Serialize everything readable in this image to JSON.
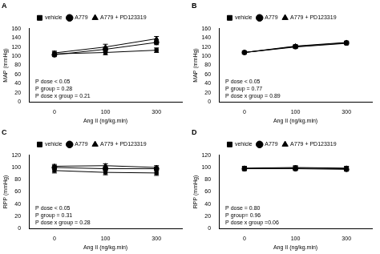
{
  "chart_data": [
    {
      "type": "line",
      "title": "A",
      "categories": [
        "0",
        "100",
        "300"
      ],
      "x_label": "Ang II (ng/kg.min)",
      "y_label": "MAP (mmHg)",
      "ylim": [
        0,
        160
      ],
      "yticks": [
        0,
        20,
        40,
        60,
        80,
        100,
        120,
        140,
        160
      ],
      "grid": false,
      "legend": "top",
      "annotations": [
        "P dose < 0.05",
        "P group = 0.28",
        "P dose x group = 0.21"
      ],
      "series": [
        {
          "name": "vehicle",
          "color": "#000000",
          "marker": "square",
          "values": [
            105,
            108,
            113
          ],
          "errors": [
            4,
            5,
            5
          ]
        },
        {
          "name": "A779",
          "color": "#000000",
          "marker": "circle",
          "values": [
            103,
            115,
            130
          ],
          "errors": [
            4,
            5,
            5
          ]
        },
        {
          "name": "A779 + PD123319",
          "color": "#000000",
          "marker": "triangle",
          "values": [
            107,
            120,
            138
          ],
          "errors": [
            4,
            6,
            5
          ]
        }
      ]
    },
    {
      "type": "line",
      "title": "B",
      "categories": [
        "0",
        "100",
        "300"
      ],
      "x_label": "Ang II (ng/kg.min)",
      "y_label": "MAP (mmHg)",
      "ylim": [
        0,
        160
      ],
      "yticks": [
        0,
        20,
        40,
        60,
        80,
        100,
        120,
        140,
        160
      ],
      "grid": false,
      "legend": "top",
      "annotations": [
        "P dose < 0.05",
        "P group = 0.77",
        "P dose x group = 0.89"
      ],
      "series": [
        {
          "name": "vehicle",
          "color": "#000000",
          "marker": "square",
          "values": [
            108,
            120,
            128
          ],
          "errors": [
            3,
            3,
            3
          ]
        },
        {
          "name": "A779",
          "color": "#000000",
          "marker": "circle",
          "values": [
            108,
            121,
            129
          ],
          "errors": [
            3,
            3,
            3
          ]
        },
        {
          "name": "A779 + PD123319",
          "color": "#000000",
          "marker": "triangle",
          "values": [
            108,
            122,
            130
          ],
          "errors": [
            3,
            3,
            3
          ]
        }
      ]
    },
    {
      "type": "line",
      "title": "C",
      "categories": [
        "0",
        "100",
        "300"
      ],
      "x_label": "Ang II (ng/kg.min)",
      "y_label": "RPP (mmHg)",
      "ylim": [
        0,
        120
      ],
      "yticks": [
        0,
        20,
        40,
        60,
        80,
        100,
        120
      ],
      "grid": false,
      "legend": "top",
      "annotations": [
        "P dose < 0.05",
        "P group = 0.31",
        "P dose x group = 0.28"
      ],
      "series": [
        {
          "name": "vehicle",
          "color": "#000000",
          "marker": "square",
          "values": [
            95,
            92,
            91
          ],
          "errors": [
            4,
            4,
            4
          ]
        },
        {
          "name": "A779",
          "color": "#000000",
          "marker": "circle",
          "values": [
            100,
            98,
            98
          ],
          "errors": [
            3,
            3,
            3
          ]
        },
        {
          "name": "A779 + PD123319",
          "color": "#000000",
          "marker": "triangle",
          "values": [
            102,
            103,
            100
          ],
          "errors": [
            3,
            3,
            3
          ]
        }
      ]
    },
    {
      "type": "line",
      "title": "D",
      "categories": [
        "0",
        "100",
        "300"
      ],
      "x_label": "Ang II (ng/kg.min)",
      "y_label": "RPP (mmHg)",
      "ylim": [
        0,
        120
      ],
      "yticks": [
        0,
        20,
        40,
        60,
        80,
        100,
        120
      ],
      "grid": false,
      "legend": "top",
      "annotations": [
        "P dose = 0.80",
        "P group= 0.96",
        "P dose x group =0.06"
      ],
      "series": [
        {
          "name": "vehicle",
          "color": "#000000",
          "marker": "square",
          "values": [
            98,
            99,
            98
          ],
          "errors": [
            3,
            3,
            3
          ]
        },
        {
          "name": "A779",
          "color": "#000000",
          "marker": "circle",
          "values": [
            98,
            98,
            97
          ],
          "errors": [
            3,
            3,
            3
          ]
        },
        {
          "name": "A779 + PD123319",
          "color": "#000000",
          "marker": "triangle",
          "values": [
            99,
            100,
            99
          ],
          "errors": [
            3,
            3,
            3
          ]
        }
      ]
    }
  ]
}
